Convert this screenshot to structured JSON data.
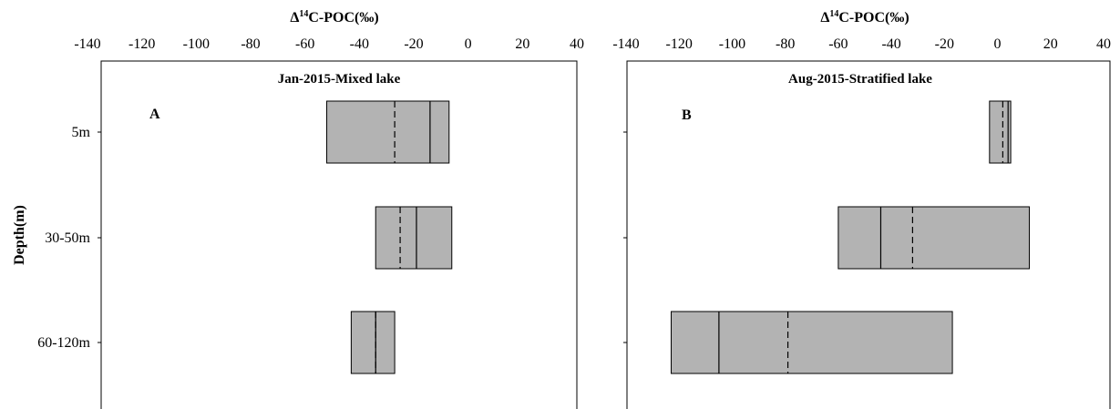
{
  "figure": {
    "y_axis_title": "Depth(m)",
    "x_axis_title_prefix": "Δ",
    "x_axis_title_sup": "14",
    "x_axis_title_suffix": "C-POC(‰)"
  },
  "chart_data": [
    {
      "type": "box",
      "panel_letter": "A",
      "title": "Jan-2015-Mixed lake",
      "xlabel": "Δ14C-POC(‰)",
      "ylabel": "Depth(m)",
      "xlim": [
        -140,
        40
      ],
      "xticks": [
        -140,
        -120,
        -100,
        -80,
        -60,
        -40,
        -20,
        0,
        20,
        40
      ],
      "categories": [
        "5m",
        "30-50m",
        "60-120m"
      ],
      "boxes": [
        {
          "category": "5m",
          "min": -52,
          "max": -7,
          "median": -14,
          "mean": -27
        },
        {
          "category": "30-50m",
          "min": -34,
          "max": -6,
          "median": -19,
          "mean": -25
        },
        {
          "category": "60-120m",
          "min": -43,
          "max": -27,
          "median": -34,
          "mean": -34
        }
      ],
      "grid": false
    },
    {
      "type": "box",
      "panel_letter": "B",
      "title": "Aug-2015-Stratified lake",
      "xlabel": "Δ14C-POC(‰)",
      "ylabel": "",
      "xlim": [
        -140,
        40
      ],
      "xticks": [
        -140,
        -120,
        -100,
        -80,
        -60,
        -40,
        -20,
        0,
        20,
        40
      ],
      "categories": [
        "5m",
        "30-50m",
        "60-120m"
      ],
      "boxes": [
        {
          "category": "5m",
          "min": -3,
          "max": 5,
          "median": 4,
          "mean": 2
        },
        {
          "category": "30-50m",
          "min": -60,
          "max": 12,
          "median": -44,
          "mean": -32
        },
        {
          "category": "60-120m",
          "min": -123,
          "max": -17,
          "median": -105,
          "mean": -79
        }
      ],
      "grid": false
    }
  ],
  "colors": {
    "box_fill": "#b3b3b3",
    "box_stroke": "#000000",
    "axis": "#000000"
  },
  "line_styles": {
    "median": "solid",
    "mean": "dashed"
  }
}
